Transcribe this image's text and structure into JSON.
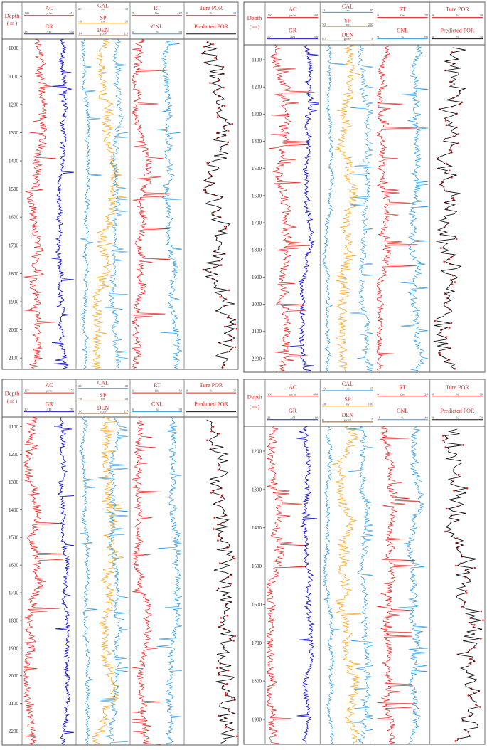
{
  "labels": {
    "depth_title": "Depth",
    "depth_unit": "( m )",
    "true_por": "Ture POR",
    "pred_por": "Predicted POR"
  },
  "colors": {
    "AC": "#e8211f",
    "GR": "#1a1acc",
    "CAL": "#2a9ae0",
    "SP": "#f5a623",
    "DEN": "#8b5a2b",
    "RT": "#e8211f",
    "CNL": "#2a9ae0",
    "TRUE_POR": "#e8211f",
    "PRED_POR": "#111111",
    "header_text": "#cc2a2a"
  },
  "chart_data": [
    {
      "type": "line",
      "panel": "top-left",
      "depth_ticks": [
        1000,
        1100,
        1200,
        1300,
        1400,
        1500,
        1600,
        1700,
        1800,
        1900,
        2000,
        2100
      ],
      "depth_range": [
        968,
        2140
      ],
      "tracks": [
        {
          "curves": [
            {
              "name": "AC",
              "min": "180",
              "unit": "μs/m",
              "max": "411",
              "color": "AC"
            },
            {
              "name": "GR",
              "min": "38",
              "unit": "API",
              "max": "448",
              "color": "GR"
            }
          ]
        },
        {
          "curves": [
            {
              "name": "CAL",
              "min": "20",
              "unit": "cm",
              "max": "38",
              "color": "CAL"
            },
            {
              "name": "SP",
              "min": "-30",
              "unit": "mv",
              "max": "38",
              "color": "SP"
            },
            {
              "name": "DEN",
              "min": "1.4",
              "unit": "g/cm³",
              "max": "2.8",
              "color": "DEN"
            }
          ]
        },
        {
          "curves": [
            {
              "name": "RT",
              "min": "5",
              "unit": "Ωm",
              "max": "484",
              "color": "RT"
            },
            {
              "name": "CNL",
              "min": "0",
              "unit": "%",
              "max": "88",
              "color": "CNL"
            }
          ]
        },
        {
          "curves": [
            {
              "name": "Ture POR",
              "min": "0",
              "unit": "%",
              "max": "30",
              "color": "TRUE_POR"
            },
            {
              "name": "Predicted POR",
              "min": "",
              "unit": "",
              "max": "",
              "color": "PRED_POR"
            }
          ]
        }
      ]
    },
    {
      "type": "line",
      "panel": "top-right",
      "depth_ticks": [
        1100,
        1200,
        1300,
        1400,
        1500,
        1600,
        1700,
        1800,
        1900,
        2000,
        2100,
        2200
      ],
      "depth_range": [
        1045,
        2250
      ],
      "tracks": [
        {
          "curves": [
            {
              "name": "AC",
              "min": "150",
              "unit": "μs/m",
              "max": "500",
              "color": "AC"
            },
            {
              "name": "GR",
              "min": "50",
              "unit": "API",
              "max": "500",
              "color": "GR"
            }
          ]
        },
        {
          "curves": [
            {
              "name": "CAL",
              "min": "21",
              "unit": "cm",
              "max": "40",
              "color": "CAL"
            },
            {
              "name": "SP",
              "min": "50",
              "unit": "mv",
              "max": "200",
              "color": "SP"
            },
            {
              "name": "DEN",
              "min": "0.5",
              "unit": "g/cm³",
              "max": "3",
              "color": "DEN"
            }
          ]
        },
        {
          "curves": [
            {
              "name": "RT",
              "min": "0",
              "unit": "Ωm",
              "max": "70",
              "color": "RT"
            },
            {
              "name": "CNL",
              "min": "0",
              "unit": "%",
              "max": "60",
              "color": "CNL"
            }
          ]
        },
        {
          "curves": [
            {
              "name": "Ture POR",
              "min": "0",
              "unit": "%",
              "max": "30",
              "color": "TRUE_POR"
            },
            {
              "name": "Predicted POR",
              "min": "0",
              "unit": "%",
              "max": "30",
              "color": "PRED_POR"
            }
          ]
        }
      ]
    },
    {
      "type": "line",
      "panel": "bottom-left",
      "depth_ticks": [
        1100,
        1200,
        1300,
        1400,
        1500,
        1600,
        1700,
        1800,
        1900,
        2000,
        2100,
        2200
      ],
      "depth_range": [
        1065,
        2250
      ],
      "tracks": [
        {
          "curves": [
            {
              "name": "AC",
              "min": "167",
              "unit": "μs/m",
              "max": "476",
              "color": "AC"
            },
            {
              "name": "GR",
              "min": "30",
              "unit": "API",
              "max": "781",
              "color": "GR"
            }
          ]
        },
        {
          "curves": [
            {
              "name": "CAL",
              "min": "23",
              "unit": "cm",
              "max": "40",
              "color": "CAL"
            },
            {
              "name": "SP",
              "min": "-30",
              "unit": "mv",
              "max": "40",
              "color": "SP"
            },
            {
              "name": "DEN",
              "min": "1.6",
              "unit": "g/cm³",
              "max": "2.7",
              "color": "DEN"
            }
          ]
        },
        {
          "curves": [
            {
              "name": "RT",
              "min": "6",
              "unit": "Ωm",
              "max": "160",
              "color": "RT"
            },
            {
              "name": "CNL",
              "min": "0",
              "unit": "%",
              "max": "98",
              "color": "CNL"
            }
          ]
        },
        {
          "curves": [
            {
              "name": "Ture POR",
              "min": "0",
              "unit": "%",
              "max": "30",
              "color": "TRUE_POR"
            },
            {
              "name": "Predicted POR",
              "min": "",
              "unit": "",
              "max": "",
              "color": "PRED_POR"
            }
          ]
        }
      ]
    },
    {
      "type": "line",
      "panel": "bottom-right",
      "depth_ticks": [
        1200,
        1300,
        1400,
        1500,
        1600,
        1700,
        1800,
        1900
      ],
      "depth_range": [
        1135,
        1965
      ],
      "tracks": [
        {
          "curves": [
            {
              "name": "AC",
              "min": "100",
              "unit": "μs/m",
              "max": "600",
              "color": "AC"
            },
            {
              "name": "GR",
              "min": "22",
              "unit": "API",
              "max": "500",
              "color": "GR"
            }
          ]
        },
        {
          "curves": [
            {
              "name": "CAL",
              "min": "10",
              "unit": "cm",
              "max": "65",
              "color": "CAL"
            },
            {
              "name": "SP",
              "min": "-30",
              "unit": "mv",
              "max": "100",
              "color": "SP"
            },
            {
              "name": "DEN",
              "min": "0",
              "unit": "g/cm³",
              "max": "5",
              "color": "DEN"
            }
          ]
        },
        {
          "curves": [
            {
              "name": "RT",
              "min": "0",
              "unit": "Ωm",
              "max": "120",
              "color": "RT"
            },
            {
              "name": "CNL",
              "min": "11",
              "unit": "%",
              "max": "140",
              "color": "CNL"
            }
          ]
        },
        {
          "curves": [
            {
              "name": "Ture POR",
              "min": "0",
              "unit": "%",
              "max": "30",
              "color": "TRUE_POR"
            },
            {
              "name": "Predicted POR",
              "min": "0",
              "unit": "%",
              "max": "30",
              "color": "PRED_POR"
            }
          ]
        }
      ]
    }
  ]
}
